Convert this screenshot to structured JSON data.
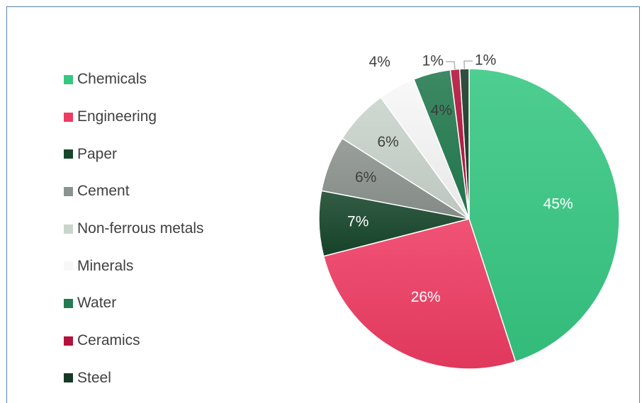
{
  "chart_data": {
    "type": "pie",
    "title": "",
    "legend_position": "left",
    "slices": [
      {
        "label": "Chemicals",
        "value": 45,
        "data_label": "45%",
        "color": "#36c782"
      },
      {
        "label": "Engineering",
        "value": 26,
        "data_label": "26%",
        "color": "#ee3c63"
      },
      {
        "label": "Paper",
        "value": 7,
        "data_label": "7%",
        "color": "#17462c"
      },
      {
        "label": "Cement",
        "value": 6,
        "data_label": "6%",
        "color": "#8c938e"
      },
      {
        "label": "Non-ferrous metals",
        "value": 6,
        "data_label": "6%",
        "color": "#c9d4cc"
      },
      {
        "label": "Minerals",
        "value": 4,
        "data_label": "4%",
        "color": "#f7f7f7"
      },
      {
        "label": "Water",
        "value": 4,
        "data_label": "4%",
        "color": "#227a4f"
      },
      {
        "label": "Ceramics",
        "value": 1,
        "data_label": "1%",
        "color": "#b3123a"
      },
      {
        "label": "Steel",
        "value": 1,
        "data_label": "1%",
        "color": "#163826"
      }
    ]
  }
}
